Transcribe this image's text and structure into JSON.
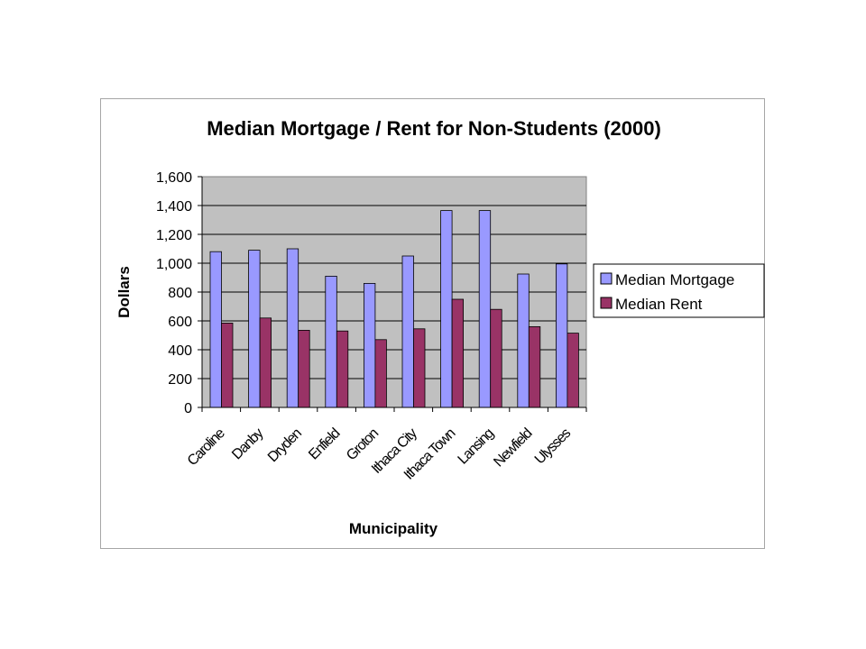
{
  "chart_data": {
    "type": "bar",
    "title": "Median Mortgage / Rent for Non-Students (2000)",
    "xlabel": "Municipality",
    "ylabel": "Dollars",
    "ylim": [
      0,
      1600
    ],
    "yticks": [
      0,
      200,
      400,
      600,
      800,
      1000,
      1200,
      1400,
      1600
    ],
    "ytick_labels": [
      "0",
      "200",
      "400",
      "600",
      "800",
      "1,000",
      "1,200",
      "1,400",
      "1,600"
    ],
    "categories": [
      "Caroline",
      "Danby",
      "Dryden",
      "Enfield",
      "Groton",
      "Ithaca City",
      "Ithaca Town",
      "Lansing",
      "Newfield",
      "Ulysses"
    ],
    "series": [
      {
        "name": "Median Mortgage",
        "color": "#9999ff",
        "values": [
          1080,
          1090,
          1100,
          910,
          860,
          1050,
          1365,
          1365,
          925,
          995
        ]
      },
      {
        "name": "Median Rent",
        "color": "#993366",
        "values": [
          585,
          620,
          535,
          530,
          470,
          545,
          750,
          680,
          560,
          515
        ]
      }
    ],
    "grid": true,
    "plot_background": "#c0c0c0",
    "legend": "right"
  }
}
